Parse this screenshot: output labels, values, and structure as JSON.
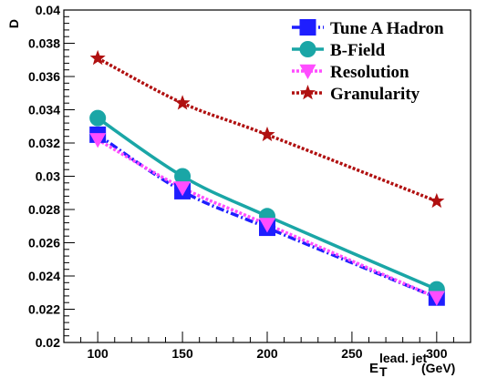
{
  "chart_data": {
    "type": "line",
    "title": "",
    "ylabel": "D",
    "xlabel": {
      "main": "E",
      "sub": "T",
      "sup": "lead. jet",
      "unit": "(GeV)"
    },
    "xlim": [
      80,
      320
    ],
    "ylim": [
      0.02,
      0.04
    ],
    "x_ticks": [
      100,
      150,
      200,
      250,
      300
    ],
    "x_tick_labels": [
      "100",
      "150",
      "200",
      "250",
      "300"
    ],
    "y_ticks": [
      0.02,
      0.022,
      0.024,
      0.026,
      0.028,
      0.03,
      0.032,
      0.034,
      0.036,
      0.038,
      0.04
    ],
    "y_tick_labels": [
      "0.02",
      "0.022",
      "0.024",
      "0.026",
      "0.028",
      "0.03",
      "0.032",
      "0.034",
      "0.036",
      "0.038",
      "0.04"
    ],
    "grid": false,
    "legend_position": "top-right",
    "x": [
      100,
      150,
      200,
      300
    ],
    "series": [
      {
        "name": "Tune A Hadron",
        "values": [
          0.0325,
          0.0291,
          0.0269,
          0.0227
        ],
        "color": "#1e1eff",
        "marker": "square",
        "line_style": "dashdot"
      },
      {
        "name": "B-Field",
        "values": [
          0.0335,
          0.03,
          0.0276,
          0.0232
        ],
        "color": "#1aa6a6",
        "marker": "circle",
        "line_style": "solid"
      },
      {
        "name": "Resolution",
        "values": [
          0.0322,
          0.0293,
          0.0271,
          0.0227
        ],
        "color": "#ff4dff",
        "marker": "triangle-down",
        "line_style": "dotted"
      },
      {
        "name": "Granularity",
        "values": [
          0.0371,
          0.0344,
          0.0325,
          0.0285
        ],
        "color": "#b01010",
        "marker": "star",
        "line_style": "dotted"
      }
    ]
  }
}
